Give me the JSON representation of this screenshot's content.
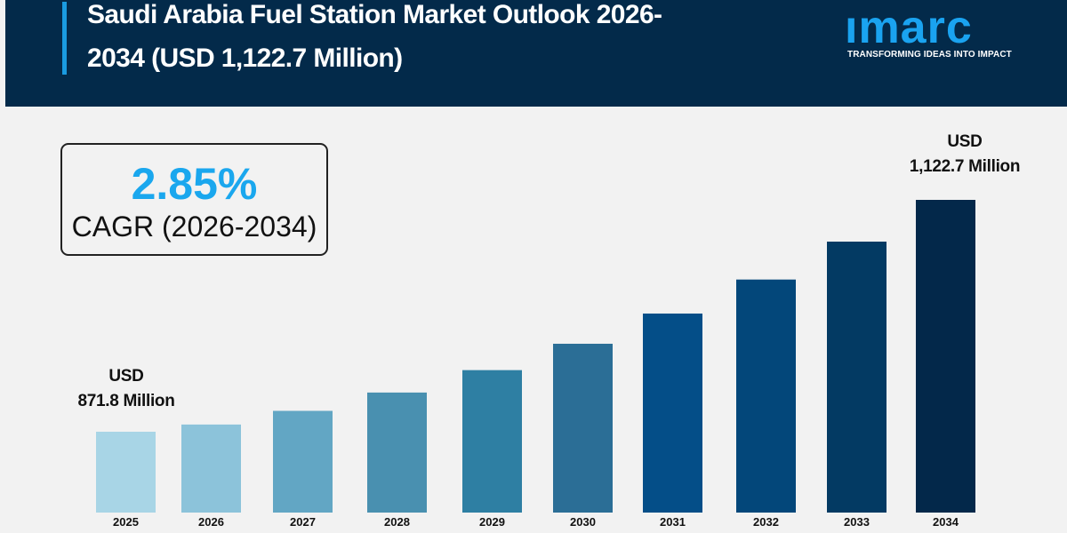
{
  "header": {
    "title_line1": "Saudi Arabia Fuel Station Market Outlook 2026-",
    "title_line2": "2034 (USD 1,122.7 Million)"
  },
  "logo": {
    "word": "ımarc",
    "tagline": "TRANSFORMING IDEAS INTO IMPACT"
  },
  "cagr": {
    "value": "2.85%",
    "label": "CAGR (2026-2034)"
  },
  "annotations": {
    "start": {
      "line1": "USD",
      "line2": "871.8 Million"
    },
    "end": {
      "line1": "USD",
      "line2": "1,122.7 Million"
    }
  },
  "colors": {
    "header_bg": "#032a4a",
    "accent": "#1aa7ee",
    "background": "#f2f2f2"
  },
  "chart_data": {
    "type": "bar",
    "title": "Saudi Arabia Fuel Station Market Outlook 2026-2034 (USD 1,122.7 Million)",
    "xlabel": "",
    "ylabel": "",
    "unit": "USD Million",
    "categories": [
      "2025",
      "2026",
      "2027",
      "2028",
      "2029",
      "2030",
      "2031",
      "2032",
      "2033",
      "2034"
    ],
    "values": [
      871.8,
      896.6,
      922.2,
      948.5,
      975.5,
      1003.3,
      1031.9,
      1061.3,
      1091.6,
      1122.7
    ],
    "labeled_values": {
      "2025": "871.8",
      "2034": "1,122.7"
    },
    "bar_colors": [
      "#a8d5e6",
      "#8cc3da",
      "#62a6c4",
      "#4990b0",
      "#2e7fa3",
      "#2b6e96",
      "#044e88",
      "#03477a",
      "#033a63",
      "#03284a"
    ],
    "axes_visible": false,
    "grid": false,
    "legend": "none"
  }
}
